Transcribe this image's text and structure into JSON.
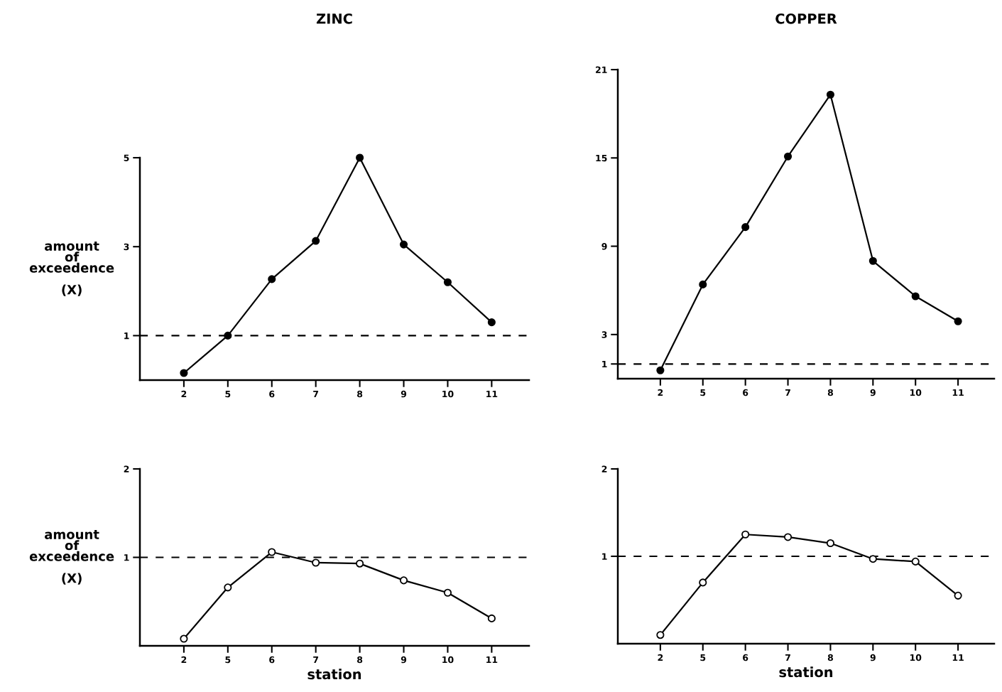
{
  "chart_data": [
    {
      "type": "line",
      "title": "ZINC",
      "ylabel": "amount\nof\nexceedence\n\n(X)",
      "categories": [
        "2",
        "5",
        "6",
        "7",
        "8",
        "9",
        "10",
        "11"
      ],
      "series": [
        {
          "color": "#000000",
          "values": [
            0.16,
            1.0,
            2.27,
            3.13,
            5.0,
            3.05,
            2.2,
            1.3
          ]
        }
      ],
      "ylim": [
        0,
        5
      ],
      "yticks": [
        1,
        3,
        5
      ],
      "marker": "circle",
      "line_style": "solid",
      "grid": false,
      "legend": false,
      "ref_lines": [
        {
          "axis": "y",
          "value": 1,
          "color": "#000000",
          "line_style": "dashed"
        }
      ]
    },
    {
      "type": "line",
      "title": "COPPER",
      "categories": [
        "2",
        "5",
        "6",
        "7",
        "8",
        "9",
        "10",
        "11"
      ],
      "series": [
        {
          "color": "#000000",
          "values": [
            0.57,
            6.4,
            10.3,
            15.1,
            19.3,
            8.0,
            5.6,
            3.9
          ]
        }
      ],
      "ylim": [
        0,
        21
      ],
      "yticks": [
        1,
        3,
        9,
        15,
        21
      ],
      "marker": "circle",
      "line_style": "solid",
      "grid": false,
      "legend": false,
      "ref_lines": [
        {
          "axis": "y",
          "value": 1,
          "color": "#000000",
          "line_style": "dashed"
        }
      ]
    },
    {
      "type": "line",
      "xlabel": "station",
      "ylabel": "amount\nof\nexceedence\n\n(X)",
      "categories": [
        "2",
        "5",
        "6",
        "7",
        "8",
        "9",
        "10",
        "11"
      ],
      "series": [
        {
          "color": "#000000",
          "colors": [
            "#ffffff",
            "#ffffff",
            "#ffffff",
            "#ffffff",
            "#ffffff",
            "#ffffff",
            "#ffffff",
            "#ffffff"
          ],
          "values": [
            0.08,
            0.66,
            1.06,
            0.94,
            0.93,
            0.74,
            0.6,
            0.31
          ]
        }
      ],
      "ylim": [
        0,
        2
      ],
      "yticks": [
        1,
        2
      ],
      "marker": "circle",
      "line_style": "solid",
      "grid": false,
      "legend": false,
      "ref_lines": [
        {
          "axis": "y",
          "value": 1,
          "color": "#000000",
          "line_style": "dashed"
        }
      ]
    },
    {
      "type": "line",
      "xlabel": "station",
      "categories": [
        "2",
        "5",
        "6",
        "7",
        "8",
        "9",
        "10",
        "11"
      ],
      "series": [
        {
          "color": "#000000",
          "colors": [
            "#ffffff",
            "#ffffff",
            "#ffffff",
            "#ffffff",
            "#ffffff",
            "#ffffff",
            "#ffffff",
            "#ffffff"
          ],
          "values": [
            0.1,
            0.7,
            1.25,
            1.22,
            1.15,
            0.97,
            0.94,
            0.55
          ]
        }
      ],
      "ylim": [
        0,
        2
      ],
      "yticks": [
        1,
        2
      ],
      "marker": "circle",
      "line_style": "solid",
      "grid": false,
      "legend": false,
      "ref_lines": [
        {
          "axis": "y",
          "value": 1,
          "color": "#000000",
          "line_style": "dashed"
        }
      ]
    }
  ]
}
